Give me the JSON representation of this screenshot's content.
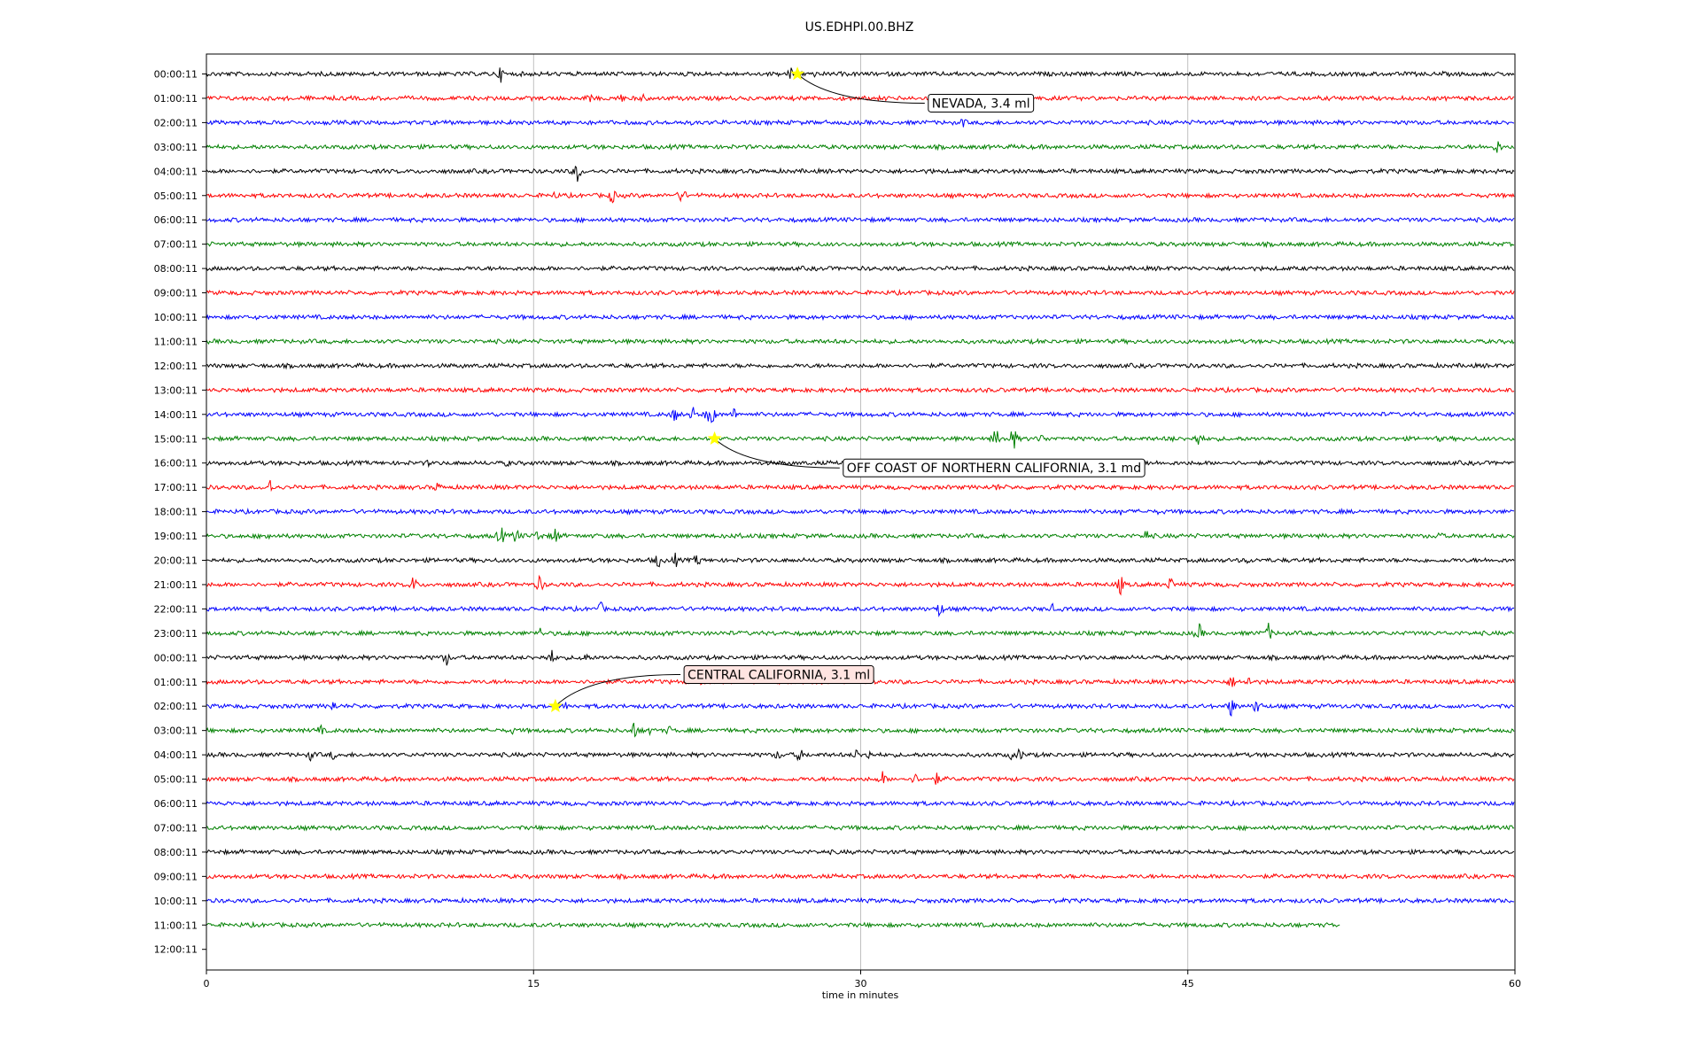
{
  "chart_data": {
    "type": "line",
    "title": "US.EDHPI.00.BHZ",
    "xlabel": "time in minutes",
    "ylabel": "",
    "xlim": [
      0,
      60
    ],
    "xticks": [
      "0",
      "15",
      "30",
      "45",
      "60"
    ],
    "grid": "vertical",
    "legend": "none",
    "trace_colors": [
      "#000000",
      "#ff0000",
      "#0000ff",
      "#008000"
    ],
    "row_labels": [
      "00:00:11",
      "01:00:11",
      "02:00:11",
      "03:00:11",
      "04:00:11",
      "05:00:11",
      "06:00:11",
      "07:00:11",
      "08:00:11",
      "09:00:11",
      "10:00:11",
      "11:00:11",
      "12:00:11",
      "13:00:11",
      "14:00:11",
      "15:00:11",
      "16:00:11",
      "17:00:11",
      "18:00:11",
      "19:00:11",
      "20:00:11",
      "21:00:11",
      "22:00:11",
      "23:00:11",
      "00:00:11",
      "01:00:11",
      "02:00:11",
      "03:00:11",
      "04:00:11",
      "05:00:11",
      "06:00:11",
      "07:00:11",
      "08:00:11",
      "09:00:11",
      "10:00:11",
      "11:00:11",
      "12:00:11"
    ],
    "trace_end_minutes": [
      60,
      60,
      60,
      60,
      60,
      60,
      60,
      60,
      60,
      60,
      60,
      60,
      60,
      60,
      60,
      60,
      60,
      60,
      60,
      60,
      60,
      60,
      60,
      60,
      60,
      60,
      60,
      60,
      60,
      60,
      60,
      60,
      60,
      60,
      60,
      52,
      0
    ],
    "spikes": [
      {
        "row": 0,
        "t": 13.5,
        "a": 10
      },
      {
        "row": 0,
        "t": 26.8,
        "a": 9
      },
      {
        "row": 0,
        "t": 27.8,
        "a": 6
      },
      {
        "row": 1,
        "t": 17.5,
        "a": 9
      },
      {
        "row": 1,
        "t": 19,
        "a": 7
      },
      {
        "row": 1,
        "t": 20,
        "a": 6
      },
      {
        "row": 2,
        "t": 34.7,
        "a": 7
      },
      {
        "row": 2,
        "t": 45.5,
        "a": 4
      },
      {
        "row": 3,
        "t": 59.2,
        "a": 10
      },
      {
        "row": 4,
        "t": 17,
        "a": 14
      },
      {
        "row": 4,
        "t": 33.2,
        "a": 5
      },
      {
        "row": 5,
        "t": 16,
        "a": 6
      },
      {
        "row": 5,
        "t": 18.6,
        "a": 11
      },
      {
        "row": 5,
        "t": 21.8,
        "a": 12
      },
      {
        "row": 14,
        "t": 21.5,
        "a": 11
      },
      {
        "row": 14,
        "t": 22.3,
        "a": 10
      },
      {
        "row": 14,
        "t": 23.1,
        "a": 20
      },
      {
        "row": 14,
        "t": 24.2,
        "a": 8
      },
      {
        "row": 15,
        "t": 36.2,
        "a": 14
      },
      {
        "row": 15,
        "t": 37,
        "a": 16
      },
      {
        "row": 15,
        "t": 38.3,
        "a": 8
      },
      {
        "row": 15,
        "t": 44.2,
        "a": 6
      },
      {
        "row": 15,
        "t": 45.5,
        "a": 12
      },
      {
        "row": 15,
        "t": 56.5,
        "a": 5
      },
      {
        "row": 16,
        "t": 10.2,
        "a": 5
      },
      {
        "row": 16,
        "t": 13.8,
        "a": 6
      },
      {
        "row": 17,
        "t": 2.9,
        "a": 11
      },
      {
        "row": 17,
        "t": 10.6,
        "a": 8
      },
      {
        "row": 17,
        "t": 36.2,
        "a": 7
      },
      {
        "row": 18,
        "t": 41.9,
        "a": 5
      },
      {
        "row": 18,
        "t": 43.6,
        "a": 4
      },
      {
        "row": 19,
        "t": 2.8,
        "a": 7
      },
      {
        "row": 19,
        "t": 13.5,
        "a": 14
      },
      {
        "row": 19,
        "t": 14.2,
        "a": 12
      },
      {
        "row": 19,
        "t": 15.2,
        "a": 10
      },
      {
        "row": 19,
        "t": 16,
        "a": 12
      },
      {
        "row": 19,
        "t": 24.5,
        "a": 6
      },
      {
        "row": 19,
        "t": 43.1,
        "a": 10
      },
      {
        "row": 19,
        "t": 56.5,
        "a": 8
      },
      {
        "row": 20,
        "t": 20.7,
        "a": 11
      },
      {
        "row": 20,
        "t": 21.5,
        "a": 10
      },
      {
        "row": 20,
        "t": 22.5,
        "a": 9
      },
      {
        "row": 20,
        "t": 47.8,
        "a": 6
      },
      {
        "row": 21,
        "t": 9.5,
        "a": 11
      },
      {
        "row": 21,
        "t": 15.3,
        "a": 13
      },
      {
        "row": 21,
        "t": 41.9,
        "a": 14
      },
      {
        "row": 21,
        "t": 44.2,
        "a": 10
      },
      {
        "row": 22,
        "t": 18.1,
        "a": 9
      },
      {
        "row": 22,
        "t": 33.6,
        "a": 11
      },
      {
        "row": 22,
        "t": 38.8,
        "a": 6
      },
      {
        "row": 23,
        "t": 15.3,
        "a": 7
      },
      {
        "row": 23,
        "t": 16.5,
        "a": 6
      },
      {
        "row": 23,
        "t": 21,
        "a": 6
      },
      {
        "row": 23,
        "t": 45.5,
        "a": 14
      },
      {
        "row": 23,
        "t": 48.7,
        "a": 12
      },
      {
        "row": 24,
        "t": 11,
        "a": 11
      },
      {
        "row": 24,
        "t": 15.8,
        "a": 12
      },
      {
        "row": 24,
        "t": 17.3,
        "a": 11
      },
      {
        "row": 25,
        "t": 22.6,
        "a": 8
      },
      {
        "row": 25,
        "t": 47,
        "a": 10
      },
      {
        "row": 25,
        "t": 47.8,
        "a": 8
      },
      {
        "row": 26,
        "t": 5.8,
        "a": 9
      },
      {
        "row": 26,
        "t": 16.5,
        "a": 6
      },
      {
        "row": 26,
        "t": 47,
        "a": 14
      },
      {
        "row": 26,
        "t": 48.2,
        "a": 13
      },
      {
        "row": 27,
        "t": 5.2,
        "a": 9
      },
      {
        "row": 27,
        "t": 14,
        "a": 6
      },
      {
        "row": 27,
        "t": 19.6,
        "a": 12
      },
      {
        "row": 27,
        "t": 20.2,
        "a": 10
      },
      {
        "row": 27,
        "t": 21.2,
        "a": 7
      },
      {
        "row": 28,
        "t": 4.8,
        "a": 9
      },
      {
        "row": 28,
        "t": 5.8,
        "a": 7
      },
      {
        "row": 28,
        "t": 26.2,
        "a": 8
      },
      {
        "row": 28,
        "t": 27.2,
        "a": 10
      },
      {
        "row": 28,
        "t": 29.8,
        "a": 8
      },
      {
        "row": 28,
        "t": 30.3,
        "a": 10
      },
      {
        "row": 28,
        "t": 36.9,
        "a": 6
      },
      {
        "row": 28,
        "t": 37.3,
        "a": 9
      },
      {
        "row": 29,
        "t": 31,
        "a": 10
      },
      {
        "row": 29,
        "t": 32.5,
        "a": 8
      },
      {
        "row": 29,
        "t": 33.5,
        "a": 9
      }
    ],
    "annotations": [
      {
        "label": "NEVADA, 3.4 ml",
        "row": 0,
        "t": 27.1,
        "label_t": 33.1,
        "label_row": 1.2,
        "label_fill": "#ffffff"
      },
      {
        "label": "OFF COAST OF NORTHERN CALIFORNIA, 3.1 md",
        "row": 15,
        "t": 23.3,
        "label_t": 29.2,
        "label_row": 16.2,
        "label_fill": "#ffffff"
      },
      {
        "label": "CENTRAL CALIFORNIA, 3.1 ml",
        "row": 26,
        "t": 16,
        "label_t": 21.9,
        "label_row": 24.7,
        "label_fill": "#ffe4e1"
      }
    ]
  }
}
